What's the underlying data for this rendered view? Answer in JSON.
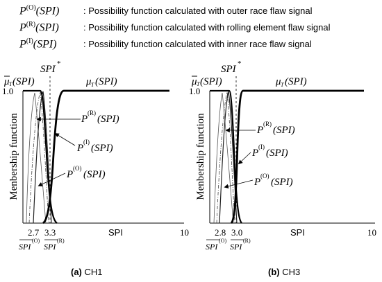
{
  "legend": [
    {
      "symbol": "P(O)(SPI)",
      "sup": "(O)",
      "description": ": Possibility function calculated with outer race flaw signal"
    },
    {
      "symbol": "P(R)(SPI)",
      "sup": "(R)",
      "description": ": Possibility function calculated with rolling element flaw signal"
    },
    {
      "symbol": "P(I)(SPI)",
      "sup": "(I)",
      "description": ": Possibility function calculated with inner race flaw signal"
    }
  ],
  "panels": [
    {
      "caption_letter": "(a)",
      "caption_text": " CH1",
      "y_axis_label": "Menbership function",
      "y_tick": "1.0",
      "x_axis_label": "SPI",
      "x_tick_left": "2.7",
      "x_tick_right": "3.3",
      "x_tick_max": "10",
      "threshold_label": "SPI",
      "threshold_star": "*",
      "mu_bar_label": "(SPI)",
      "mu_label": "(SPI)",
      "curve_R_label": "(SPI)",
      "curve_I_label": "(SPI)",
      "curve_O_label": "(SPI)",
      "sub_left": "SPI",
      "sub_left_sup": "(O)",
      "sub_right": "SPI",
      "sub_right_sup": "(R)"
    },
    {
      "caption_letter": "(b)",
      "caption_text": " CH3",
      "y_axis_label": "Menbership function",
      "y_tick": "1.0",
      "x_axis_label": "SPI",
      "x_tick_left": "2.8",
      "x_tick_right": "3.0",
      "x_tick_max": "10",
      "threshold_label": "SPI",
      "threshold_star": "*",
      "mu_bar_label": "(SPI)",
      "mu_label": "(SPI)",
      "curve_R_label": "(SPI)",
      "curve_I_label": "(SPI)",
      "curve_O_label": "(SPI)",
      "sub_left": "SPI",
      "sub_left_sup": "(O)",
      "sub_right": "SPI",
      "sub_right_sup": "(R)"
    }
  ]
}
